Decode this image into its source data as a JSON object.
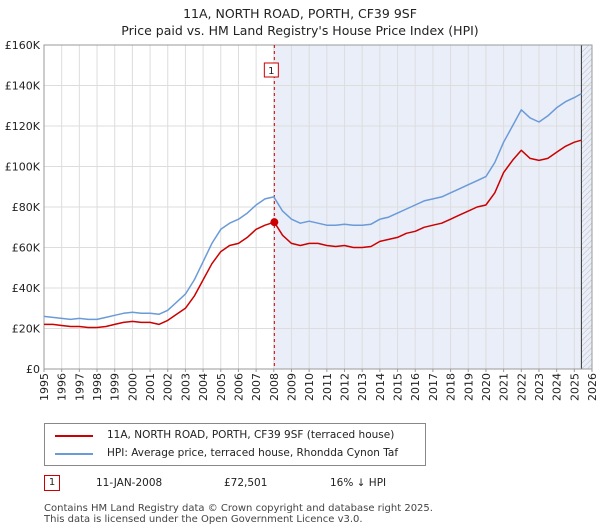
{
  "title_line1": "11A, NORTH ROAD, PORTH, CF39 9SF",
  "title_line2": "Price paid vs. HM Land Registry's House Price Index (HPI)",
  "legend": {
    "property_label": "11A, NORTH ROAD, PORTH, CF39 9SF (terraced house)",
    "hpi_label": "HPI: Average price, terraced house, Rhondda Cynon Taf"
  },
  "transaction": {
    "marker": "1",
    "date": "11-JAN-2008",
    "price": "£72,501",
    "hpi_diff": "16% ↓ HPI"
  },
  "footer": {
    "line1": "Contains HM Land Registry data © Crown copyright and database right 2025.",
    "line2": "This data is licensed under the Open Government Licence v3.0."
  },
  "chart_data": {
    "type": "line",
    "title": "11A, NORTH ROAD, PORTH, CF39 9SF - Price paid vs. HM Land Registry's House Price Index (HPI)",
    "xlim": [
      1995,
      2026
    ],
    "ylim": [
      0,
      160000
    ],
    "x_ticks": [
      "1995",
      "1996",
      "1997",
      "1998",
      "1999",
      "2000",
      "2001",
      "2002",
      "2003",
      "2004",
      "2005",
      "2006",
      "2007",
      "2008",
      "2009",
      "2010",
      "2011",
      "2012",
      "2013",
      "2014",
      "2015",
      "2016",
      "2017",
      "2018",
      "2019",
      "2020",
      "2021",
      "2022",
      "2023",
      "2024",
      "2025",
      "2026"
    ],
    "y_ticks": [
      {
        "value": 0,
        "label": "£0"
      },
      {
        "value": 20000,
        "label": "£20K"
      },
      {
        "value": 40000,
        "label": "£40K"
      },
      {
        "value": 60000,
        "label": "£60K"
      },
      {
        "value": 80000,
        "label": "£80K"
      },
      {
        "value": 100000,
        "label": "£100K"
      },
      {
        "value": 120000,
        "label": "£120K"
      },
      {
        "value": 140000,
        "label": "£140K"
      },
      {
        "value": 160000,
        "label": "£160K"
      }
    ],
    "sale_x": 2008.03,
    "sale_y": 72501,
    "data_end_x": 2025.4,
    "series": [
      {
        "name": "11A, NORTH ROAD, PORTH, CF39 9SF (terraced house)",
        "color": "#cc0000",
        "x": [
          1995,
          1995.5,
          1996,
          1996.5,
          1997,
          1997.5,
          1998,
          1998.5,
          1999,
          1999.5,
          2000,
          2000.5,
          2001,
          2001.5,
          2002,
          2002.5,
          2003,
          2003.5,
          2004,
          2004.5,
          2005,
          2005.5,
          2006,
          2006.5,
          2007,
          2007.5,
          2008.03,
          2008.5,
          2009,
          2009.5,
          2010,
          2010.5,
          2011,
          2011.5,
          2012,
          2012.5,
          2013,
          2013.5,
          2014,
          2014.5,
          2015,
          2015.5,
          2016,
          2016.5,
          2017,
          2017.5,
          2018,
          2018.5,
          2019,
          2019.5,
          2020,
          2020.5,
          2021,
          2021.5,
          2022,
          2022.5,
          2023,
          2023.5,
          2024,
          2024.5,
          2025,
          2025.4
        ],
        "y": [
          22000,
          22000,
          21500,
          21000,
          21000,
          20500,
          20500,
          21000,
          22000,
          23000,
          23500,
          23000,
          23000,
          22000,
          24000,
          27000,
          30000,
          36000,
          44000,
          52000,
          58000,
          61000,
          62000,
          65000,
          69000,
          71000,
          72501,
          66000,
          62000,
          61000,
          62000,
          62000,
          61000,
          60500,
          61000,
          60000,
          60000,
          60500,
          63000,
          64000,
          65000,
          67000,
          68000,
          70000,
          71000,
          72000,
          74000,
          76000,
          78000,
          80000,
          81000,
          87000,
          97000,
          103000,
          108000,
          104000,
          103000,
          104000,
          107000,
          110000,
          112000,
          113000
        ]
      },
      {
        "name": "HPI: Average price, terraced house, Rhondda Cynon Taf",
        "color": "#6a9bd8",
        "x": [
          1995,
          1995.5,
          1996,
          1996.5,
          1997,
          1997.5,
          1998,
          1998.5,
          1999,
          1999.5,
          2000,
          2000.5,
          2001,
          2001.5,
          2002,
          2002.5,
          2003,
          2003.5,
          2004,
          2004.5,
          2005,
          2005.5,
          2006,
          2006.5,
          2007,
          2007.5,
          2008,
          2008.5,
          2009,
          2009.5,
          2010,
          2010.5,
          2011,
          2011.5,
          2012,
          2012.5,
          2013,
          2013.5,
          2014,
          2014.5,
          2015,
          2015.5,
          2016,
          2016.5,
          2017,
          2017.5,
          2018,
          2018.5,
          2019,
          2019.5,
          2020,
          2020.5,
          2021,
          2021.5,
          2022,
          2022.5,
          2023,
          2023.5,
          2024,
          2024.5,
          2025,
          2025.4
        ],
        "y": [
          26000,
          25500,
          25000,
          24500,
          25000,
          24500,
          24500,
          25500,
          26500,
          27500,
          28000,
          27500,
          27500,
          27000,
          29000,
          33000,
          37000,
          44000,
          53000,
          62000,
          69000,
          72000,
          74000,
          77000,
          81000,
          84000,
          85000,
          78000,
          74000,
          72000,
          73000,
          72000,
          71000,
          71000,
          71500,
          71000,
          71000,
          71500,
          74000,
          75000,
          77000,
          79000,
          81000,
          83000,
          84000,
          85000,
          87000,
          89000,
          91000,
          93000,
          95000,
          102000,
          112000,
          120000,
          128000,
          124000,
          122000,
          125000,
          129000,
          132000,
          134000,
          136000
        ]
      }
    ]
  }
}
